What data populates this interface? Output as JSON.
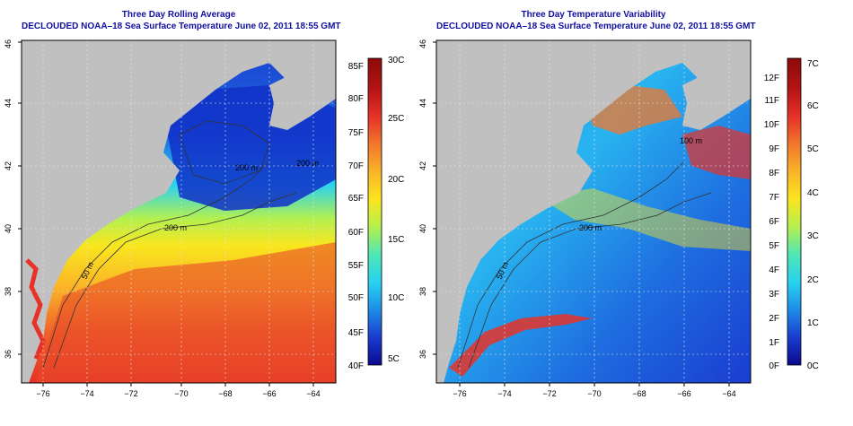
{
  "panels": [
    {
      "title": "Three Day Rolling Average",
      "subtitle": "DECLOUDED NOAA–18 Sea Surface Temperature June 02, 2011 18:55 GMT",
      "x_ticks": [
        "−76",
        "−74",
        "−72",
        "−70",
        "−68",
        "−66",
        "−64"
      ],
      "y_ticks": [
        "36",
        "38",
        "40",
        "42",
        "44",
        "46"
      ],
      "colorbar": {
        "left_labels": [
          "40F",
          "45F",
          "50F",
          "55F",
          "60F",
          "65F",
          "70F",
          "75F",
          "80F",
          "85F"
        ],
        "right_labels": [
          "5C",
          "10C",
          "15C",
          "20C",
          "25C",
          "30C"
        ],
        "colors": [
          "#0a0a8c",
          "#1a3cd0",
          "#1e8ce6",
          "#28d2f0",
          "#50e6b4",
          "#b4f050",
          "#fae61e",
          "#fab428",
          "#f0782d",
          "#e63228",
          "#b41414",
          "#8c0a0a"
        ]
      },
      "contour_labels": [
        "200 m",
        "50 m",
        "200 m",
        "200 m"
      ]
    },
    {
      "title": "Three Day Temperature Variability",
      "subtitle": "DECLOUDED NOAA–18 Sea Surface Temperature June 02, 2011 18:55 GMT",
      "x_ticks": [
        "−76",
        "−74",
        "−72",
        "−70",
        "−68",
        "−66",
        "−64"
      ],
      "y_ticks": [
        "36",
        "38",
        "40",
        "42",
        "44",
        "46"
      ],
      "colorbar": {
        "left_labels": [
          "0F",
          "1F",
          "2F",
          "3F",
          "4F",
          "5F",
          "6F",
          "7F",
          "8F",
          "9F",
          "10F",
          "11F",
          "12F"
        ],
        "right_labels": [
          "0C",
          "1C",
          "2C",
          "3C",
          "4C",
          "5C",
          "6C",
          "7C"
        ],
        "colors": [
          "#0a0a8c",
          "#1a3cd0",
          "#1e8ce6",
          "#28d2f0",
          "#50e6b4",
          "#b4f050",
          "#fae61e",
          "#fab428",
          "#f0782d",
          "#e63228",
          "#b41414",
          "#8c0a0a"
        ]
      },
      "contour_labels": [
        "200 m",
        "50 m",
        "100 m"
      ]
    }
  ],
  "colors": {
    "land": "#c0c0c0",
    "title": "#1010a0",
    "axis": "#000000",
    "grid": "#e8e8e8"
  }
}
